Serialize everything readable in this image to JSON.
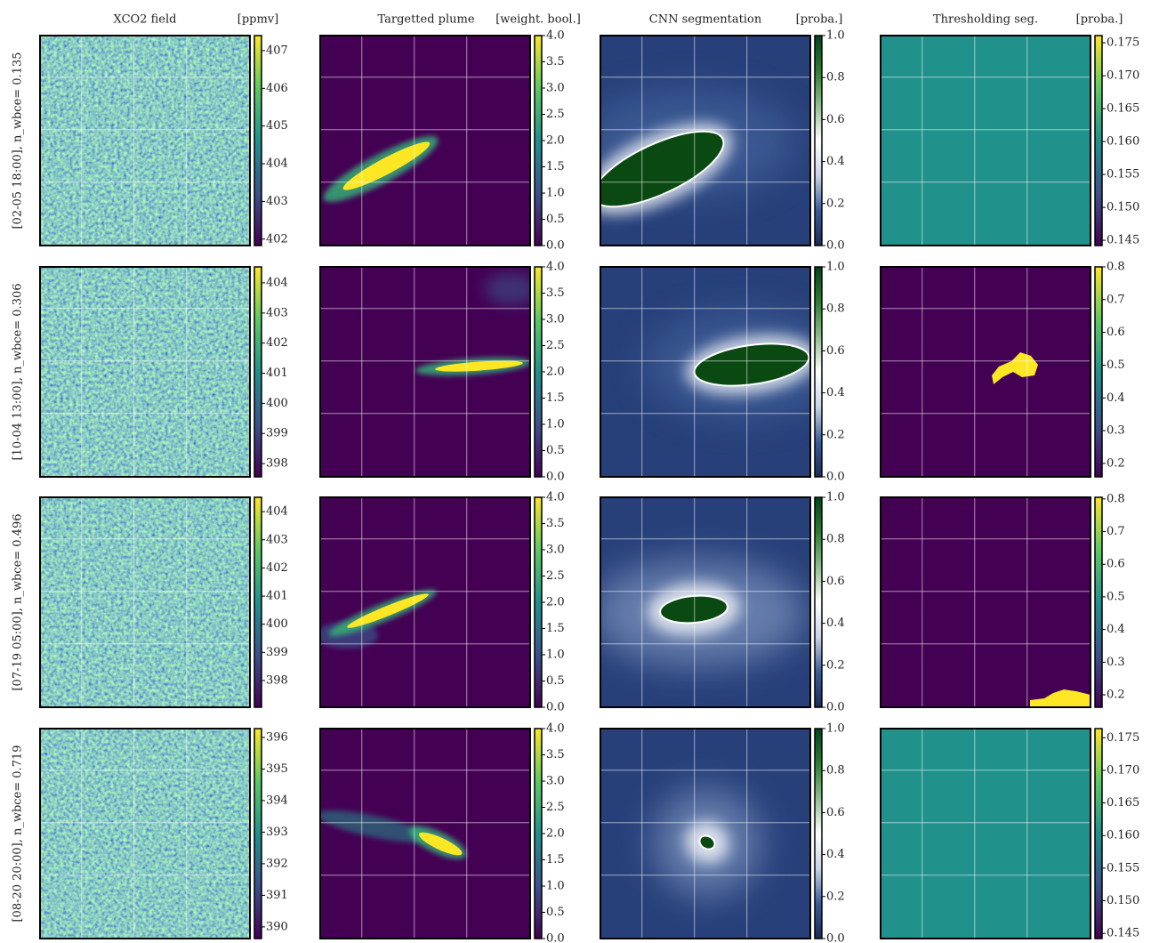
{
  "figure": {
    "columns": [
      {
        "title": "XCO2 field",
        "unit": "[ppmv]"
      },
      {
        "title": "Targetted plume",
        "unit": "[weight. bool.]"
      },
      {
        "title": "CNN segmentation",
        "unit": "[proba.]"
      },
      {
        "title": "Thresholding seg.",
        "unit": "[proba.]"
      }
    ],
    "rows": [
      {
        "label": "[02-05 18:00], n_wbce= 0.135"
      },
      {
        "label": "[10-04 13:00], n_wbce= 0.306"
      },
      {
        "label": "[07-19 05:00], n_wbce= 0.496"
      },
      {
        "label": "[08-20 20:00], n_wbce= 0.719"
      }
    ]
  },
  "chart_data": [
    {
      "type": "heatmap",
      "colormap": "viridis",
      "grid": true,
      "clim": [
        401.83,
        407.4
      ],
      "cticks": [
        402,
        403,
        404,
        405,
        406,
        407
      ]
    },
    {
      "type": "heatmap",
      "colormap": "viridis",
      "grid": true,
      "clim": [
        0,
        4
      ],
      "cticks": [
        {
          "value": 0,
          "label": "0.0"
        },
        0.5,
        {
          "value": 1,
          "label": "1.0"
        },
        1.5,
        {
          "value": 2,
          "label": "2.0"
        },
        2.5,
        {
          "value": 3,
          "label": "3.0"
        },
        3.5,
        {
          "value": 4,
          "label": "4.0"
        }
      ]
    },
    {
      "type": "heatmap",
      "colormap": "blue-white-green",
      "grid": true,
      "clim": [
        0,
        1
      ],
      "cticks": [
        {
          "value": 0,
          "label": "0.0"
        },
        0.2,
        0.4,
        0.6,
        0.8,
        {
          "value": 1,
          "label": "1.0"
        }
      ]
    },
    {
      "type": "heatmap",
      "colormap": "viridis",
      "grid": true,
      "clim": [
        0.1442,
        0.1761
      ],
      "cticks": [
        0.145,
        {
          "value": 0.15,
          "label": "0.150"
        },
        0.155,
        {
          "value": 0.16,
          "label": "0.160"
        },
        0.165,
        {
          "value": 0.17,
          "label": "0.170"
        },
        0.175
      ]
    },
    {
      "type": "heatmap",
      "colormap": "viridis",
      "grid": true,
      "clim": [
        397.56,
        404.53
      ],
      "cticks": [
        398,
        399,
        400,
        401,
        402,
        403,
        404
      ]
    },
    {
      "type": "heatmap",
      "colormap": "viridis",
      "grid": true,
      "clim": [
        0,
        4
      ],
      "cticks": [
        {
          "value": 0,
          "label": "0.0"
        },
        0.5,
        {
          "value": 1,
          "label": "1.0"
        },
        1.5,
        {
          "value": 2,
          "label": "2.0"
        },
        2.5,
        {
          "value": 3,
          "label": "3.0"
        },
        3.5,
        {
          "value": 4,
          "label": "4.0"
        }
      ]
    },
    {
      "type": "heatmap",
      "colormap": "blue-white-green",
      "grid": true,
      "clim": [
        0,
        1
      ],
      "cticks": [
        {
          "value": 0,
          "label": "0.0"
        },
        0.2,
        0.4,
        0.6,
        0.8,
        {
          "value": 1,
          "label": "1.0"
        }
      ]
    },
    {
      "type": "heatmap",
      "colormap": "viridis",
      "grid": true,
      "clim": [
        0.159,
        0.8
      ],
      "cticks": [
        0.2,
        0.3,
        0.4,
        0.5,
        0.6,
        0.7,
        0.8
      ]
    },
    {
      "type": "heatmap",
      "colormap": "viridis",
      "grid": true,
      "clim": [
        397.05,
        404.51
      ],
      "cticks": [
        398,
        399,
        400,
        401,
        402,
        403,
        404
      ]
    },
    {
      "type": "heatmap",
      "colormap": "viridis",
      "grid": true,
      "clim": [
        0,
        4
      ],
      "cticks": [
        {
          "value": 0,
          "label": "0.0"
        },
        0.5,
        {
          "value": 1,
          "label": "1.0"
        },
        1.5,
        {
          "value": 2,
          "label": "2.0"
        },
        2.5,
        {
          "value": 3,
          "label": "3.0"
        },
        3.5,
        {
          "value": 4,
          "label": "4.0"
        }
      ]
    },
    {
      "type": "heatmap",
      "colormap": "blue-white-green",
      "grid": true,
      "clim": [
        0,
        1
      ],
      "cticks": [
        {
          "value": 0,
          "label": "0.0"
        },
        0.2,
        0.4,
        0.6,
        0.8,
        {
          "value": 1,
          "label": "1.0"
        }
      ]
    },
    {
      "type": "heatmap",
      "colormap": "viridis",
      "grid": true,
      "clim": [
        0.162,
        0.805
      ],
      "cticks": [
        0.2,
        0.3,
        0.4,
        0.5,
        0.6,
        0.7,
        0.8
      ]
    },
    {
      "type": "heatmap",
      "colormap": "viridis",
      "grid": true,
      "clim": [
        389.63,
        396.28
      ],
      "cticks": [
        390,
        391,
        392,
        393,
        394,
        395,
        396
      ]
    },
    {
      "type": "heatmap",
      "colormap": "viridis",
      "grid": true,
      "clim": [
        0,
        4
      ],
      "cticks": [
        {
          "value": 0,
          "label": "0.0"
        },
        0.5,
        {
          "value": 1,
          "label": "1.0"
        },
        1.5,
        {
          "value": 2,
          "label": "2.0"
        },
        2.5,
        {
          "value": 3,
          "label": "3.0"
        },
        3.5,
        {
          "value": 4,
          "label": "4.0"
        }
      ]
    },
    {
      "type": "heatmap",
      "colormap": "blue-white-green",
      "grid": true,
      "clim": [
        0,
        1
      ],
      "cticks": [
        {
          "value": 0,
          "label": "0.0"
        },
        0.2,
        0.4,
        0.6,
        0.8,
        {
          "value": 1,
          "label": "1.0"
        }
      ]
    },
    {
      "type": "heatmap",
      "colormap": "viridis",
      "grid": true,
      "clim": [
        0.1442,
        0.1764
      ],
      "cticks": [
        0.145,
        {
          "value": 0.15,
          "label": "0.150"
        },
        0.155,
        {
          "value": 0.16,
          "label": "0.160"
        },
        0.165,
        {
          "value": 0.17,
          "label": "0.170"
        },
        0.175
      ]
    }
  ]
}
